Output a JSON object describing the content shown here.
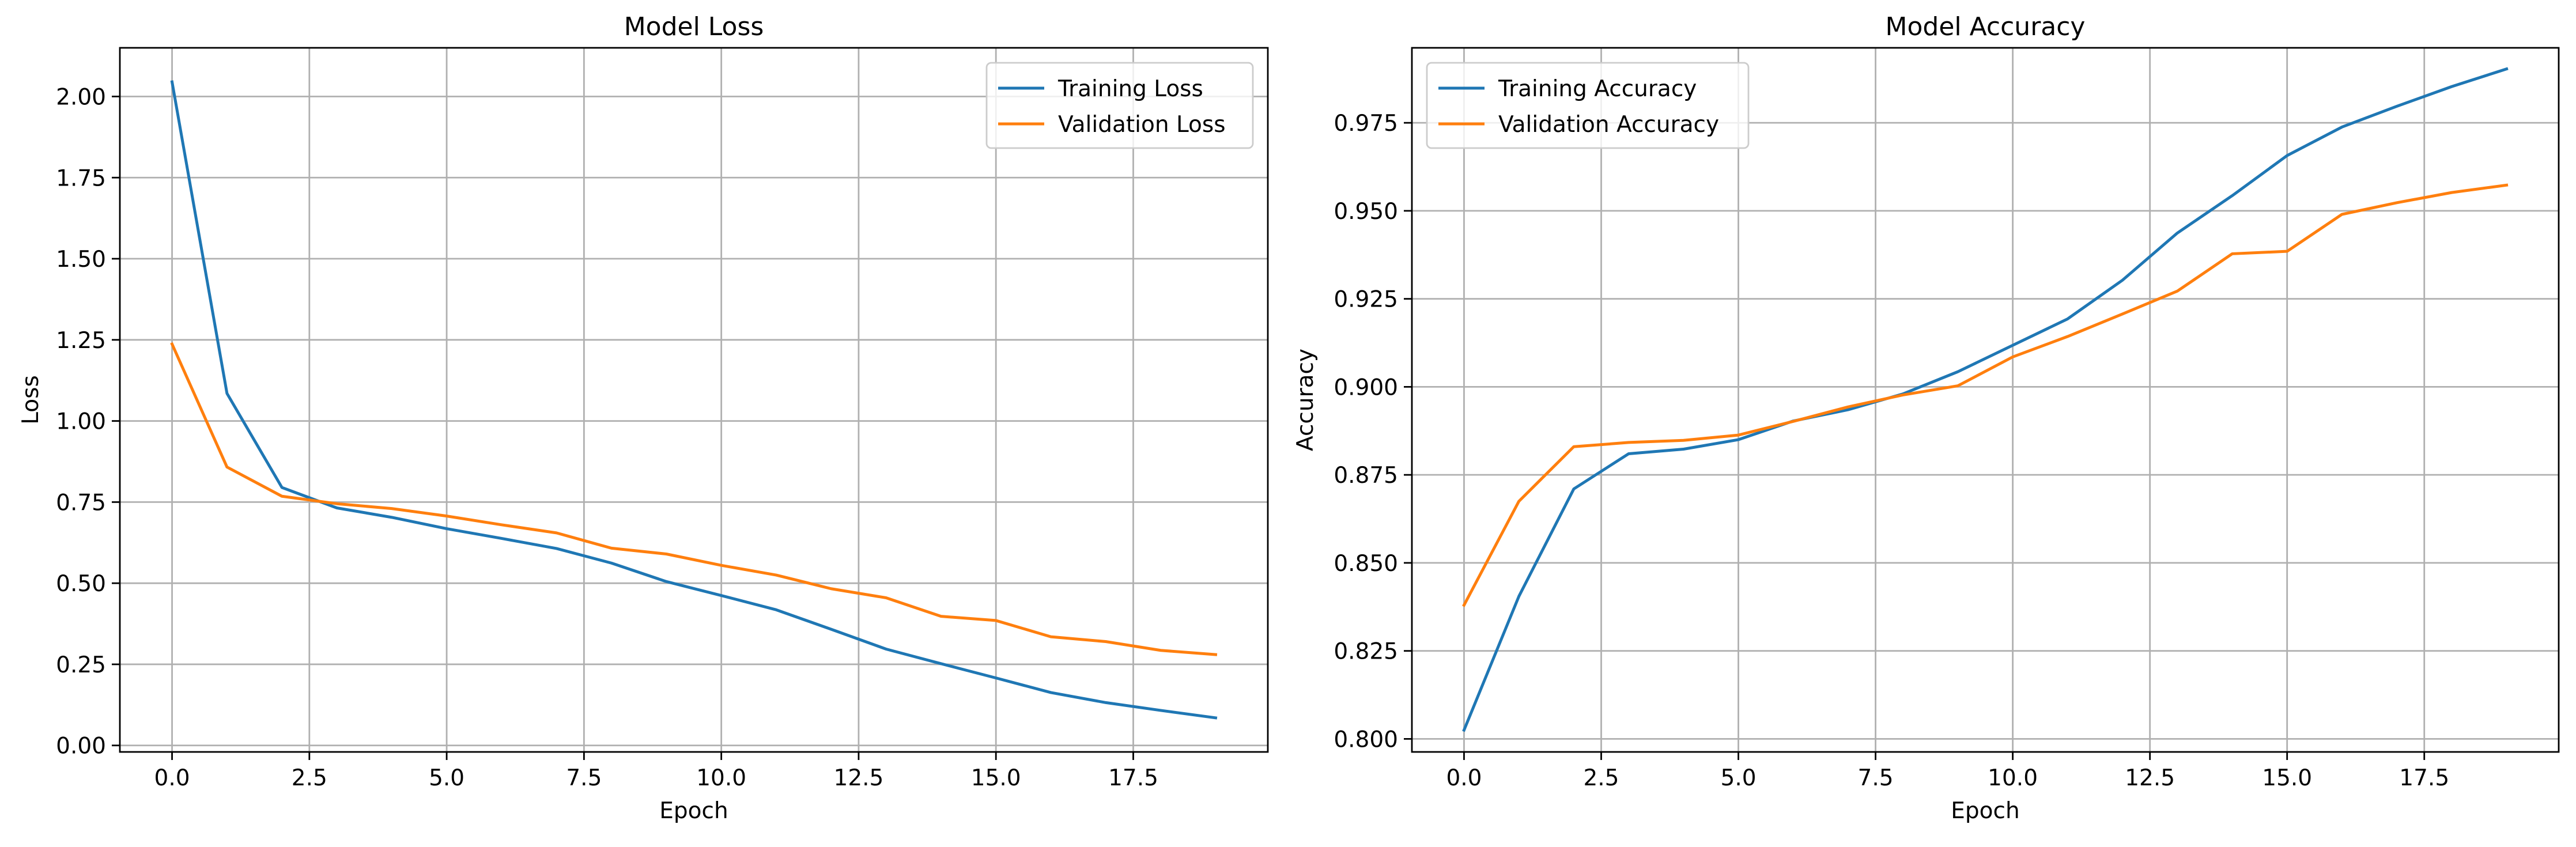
{
  "chart_data": [
    {
      "type": "line",
      "title": "Model Loss",
      "xlabel": "Epoch",
      "ylabel": "Loss",
      "xlim": [
        -0.95,
        19.95
      ],
      "ylim": [
        -0.02,
        2.15
      ],
      "xticks": [
        0.0,
        2.5,
        5.0,
        7.5,
        10.0,
        12.5,
        15.0,
        17.5
      ],
      "xtick_labels": [
        "0.0",
        "2.5",
        "5.0",
        "7.5",
        "10.0",
        "12.5",
        "15.0",
        "17.5"
      ],
      "yticks": [
        0.0,
        0.25,
        0.5,
        0.75,
        1.0,
        1.25,
        1.5,
        1.75,
        2.0
      ],
      "ytick_labels": [
        "0.00",
        "0.25",
        "0.50",
        "0.75",
        "1.00",
        "1.25",
        "1.50",
        "1.75",
        "2.00"
      ],
      "grid": true,
      "legend_position": "upper right",
      "x": [
        0,
        1,
        2,
        3,
        4,
        5,
        6,
        7,
        8,
        9,
        10,
        11,
        12,
        13,
        14,
        15,
        16,
        17,
        18,
        19
      ],
      "series": [
        {
          "name": "Training Loss",
          "color": "#1f77b4",
          "values": [
            2.045,
            1.085,
            0.795,
            0.732,
            0.703,
            0.668,
            0.638,
            0.607,
            0.562,
            0.505,
            0.462,
            0.418,
            0.358,
            0.297,
            0.252,
            0.208,
            0.163,
            0.132,
            0.108,
            0.085
          ]
        },
        {
          "name": "Validation Loss",
          "color": "#ff7f0e",
          "values": [
            1.237,
            0.858,
            0.768,
            0.745,
            0.73,
            0.707,
            0.68,
            0.655,
            0.608,
            0.59,
            0.555,
            0.525,
            0.483,
            0.455,
            0.398,
            0.385,
            0.335,
            0.32,
            0.293,
            0.28
          ]
        }
      ]
    },
    {
      "type": "line",
      "title": "Model Accuracy",
      "xlabel": "Epoch",
      "ylabel": "Accuracy",
      "xlim": [
        -0.95,
        19.95
      ],
      "ylim": [
        0.7963,
        0.9963
      ],
      "xticks": [
        0.0,
        2.5,
        5.0,
        7.5,
        10.0,
        12.5,
        15.0,
        17.5
      ],
      "xtick_labels": [
        "0.0",
        "2.5",
        "5.0",
        "7.5",
        "10.0",
        "12.5",
        "15.0",
        "17.5"
      ],
      "yticks": [
        0.8,
        0.825,
        0.85,
        0.875,
        0.9,
        0.925,
        0.95,
        0.975
      ],
      "ytick_labels": [
        "0.800",
        "0.825",
        "0.850",
        "0.875",
        "0.900",
        "0.925",
        "0.950",
        "0.975"
      ],
      "grid": true,
      "legend_position": "upper left",
      "x": [
        0,
        1,
        2,
        3,
        4,
        5,
        6,
        7,
        8,
        9,
        10,
        11,
        12,
        13,
        14,
        15,
        16,
        17,
        18,
        19
      ],
      "series": [
        {
          "name": "Training Accuracy",
          "color": "#1f77b4",
          "values": [
            0.8025,
            0.8405,
            0.871,
            0.881,
            0.8823,
            0.885,
            0.8903,
            0.8935,
            0.898,
            0.9043,
            0.9118,
            0.9193,
            0.9303,
            0.9437,
            0.9543,
            0.9657,
            0.9738,
            0.9797,
            0.9853,
            0.9903
          ]
        },
        {
          "name": "Validation Accuracy",
          "color": "#ff7f0e",
          "values": [
            0.838,
            0.8675,
            0.883,
            0.8842,
            0.8848,
            0.8863,
            0.8902,
            0.8943,
            0.8977,
            0.9003,
            0.9085,
            0.9143,
            0.9207,
            0.9272,
            0.9378,
            0.9385,
            0.949,
            0.9523,
            0.9552,
            0.9573
          ]
        }
      ]
    }
  ]
}
